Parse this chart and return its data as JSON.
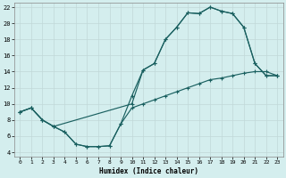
{
  "xlabel": "Humidex (Indice chaleur)",
  "bg_color": "#d4eeee",
  "line_color": "#1a6060",
  "grid_color": "#c8e0e0",
  "xlim": [
    -0.5,
    23.5
  ],
  "ylim": [
    3.5,
    22.5
  ],
  "xticks": [
    0,
    1,
    2,
    3,
    4,
    5,
    6,
    7,
    8,
    9,
    10,
    11,
    12,
    13,
    14,
    15,
    16,
    17,
    18,
    19,
    20,
    21,
    22,
    23
  ],
  "yticks": [
    4,
    6,
    8,
    10,
    12,
    14,
    16,
    18,
    20,
    22
  ],
  "curve1_x": [
    0,
    1,
    2,
    3,
    4,
    5,
    6,
    7,
    8,
    9,
    10,
    11,
    12,
    13,
    14,
    15,
    16,
    17,
    18,
    19,
    20,
    21,
    22,
    23
  ],
  "curve1_y": [
    9.0,
    9.5,
    8.0,
    7.2,
    6.5,
    5.0,
    4.7,
    4.7,
    4.8,
    7.5,
    11.0,
    14.2,
    15.0,
    18.0,
    19.5,
    21.3,
    21.2,
    22.0,
    21.5,
    21.2,
    19.5,
    15.0,
    13.5,
    13.5
  ],
  "curve2_x": [
    0,
    1,
    2,
    3,
    10,
    11,
    12,
    13,
    14,
    15,
    16,
    17,
    18,
    19,
    20,
    21,
    22,
    23
  ],
  "curve2_y": [
    9.0,
    9.5,
    8.0,
    7.2,
    10.0,
    14.2,
    15.0,
    18.0,
    19.5,
    21.3,
    21.2,
    22.0,
    21.5,
    21.2,
    19.5,
    15.0,
    13.5,
    13.5
  ],
  "curve3_x": [
    0,
    1,
    2,
    3,
    4,
    5,
    6,
    7,
    8,
    9,
    10,
    11,
    12,
    13,
    14,
    15,
    16,
    17,
    18,
    19,
    20,
    21,
    22,
    23
  ],
  "curve3_y": [
    9.0,
    9.5,
    8.0,
    7.2,
    6.5,
    5.0,
    4.7,
    4.7,
    4.8,
    7.5,
    9.5,
    10.0,
    10.5,
    11.0,
    11.5,
    12.0,
    12.5,
    13.0,
    13.2,
    13.5,
    13.8,
    14.0,
    14.0,
    13.5
  ]
}
